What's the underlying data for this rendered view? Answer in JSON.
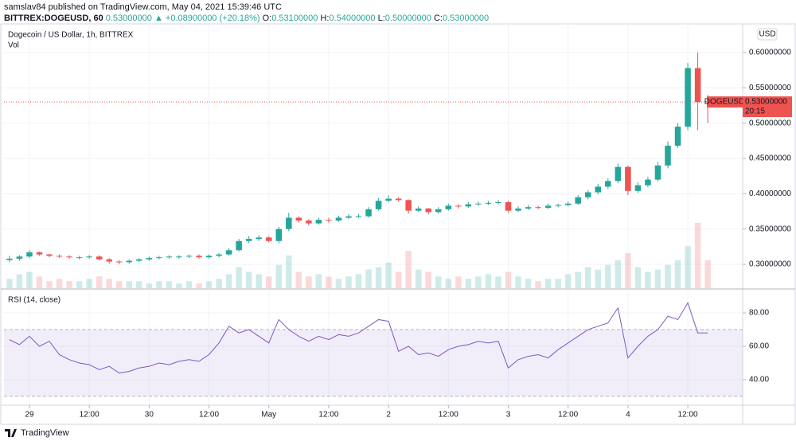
{
  "header": {
    "publisher": "samslav84 published on TradingView.com, May 04, 2021 15:39:46 UTC",
    "symbol": "BITTREX:DOGEUSD, 60",
    "price": "0.53000000",
    "arrow": "▲",
    "change": "+0.08900000 (+20.18%)",
    "o_label": "O:",
    "o": "0.53100000",
    "h_label": "H:",
    "h": "0.54000000",
    "l_label": "L:",
    "l": "0.50000000",
    "c_label": "C:",
    "c": "0.53000000"
  },
  "footer": {
    "brand": "TradingView"
  },
  "chart_data": [
    {
      "type": "candlestick",
      "title": "Dogecoin / US Dollar, 1h, BITTREX",
      "volume_label": "Vol",
      "currency": "USD",
      "up_color": "#26a69a",
      "down_color": "#ef5350",
      "grid": true,
      "xlim": [
        -5.1,
        143
      ],
      "xticks": [
        {
          "value": 0,
          "label": "29"
        },
        {
          "value": 12,
          "label": "12:00"
        },
        {
          "value": 24,
          "label": "30"
        },
        {
          "value": 36,
          "label": "12:00"
        },
        {
          "value": 48,
          "label": "May"
        },
        {
          "value": 60,
          "label": "12:00"
        },
        {
          "value": 72,
          "label": "2"
        },
        {
          "value": 84,
          "label": "12:00"
        },
        {
          "value": 96,
          "label": "3"
        },
        {
          "value": 108,
          "label": "12:00"
        },
        {
          "value": 120,
          "label": "4"
        },
        {
          "value": 132,
          "label": "12:00"
        }
      ],
      "ylim": [
        0.2662,
        0.6406
      ],
      "yticks": [
        {
          "value": 0.3,
          "label": "0.30000000"
        },
        {
          "value": 0.35,
          "label": "0.35000000"
        },
        {
          "value": 0.4,
          "label": "0.40000000"
        },
        {
          "value": 0.45,
          "label": "0.45000000"
        },
        {
          "value": 0.5,
          "label": "0.50000000"
        },
        {
          "value": 0.55,
          "label": "0.55000000"
        },
        {
          "value": 0.6,
          "label": "0.60000000"
        }
      ],
      "last_price": {
        "value": 0.53,
        "label": "0.53000000"
      },
      "last_price_tag": "DOGEUSD",
      "countdown": "20:15",
      "x": [
        -4,
        -2,
        0,
        2,
        4,
        6,
        8,
        10,
        12,
        14,
        16,
        18,
        20,
        22,
        24,
        26,
        28,
        30,
        32,
        34,
        36,
        38,
        40,
        42,
        44,
        46,
        48,
        50,
        52,
        54,
        56,
        58,
        60,
        62,
        64,
        66,
        68,
        70,
        72,
        74,
        76,
        78,
        80,
        82,
        84,
        86,
        88,
        90,
        92,
        94,
        96,
        98,
        100,
        102,
        104,
        106,
        108,
        110,
        112,
        114,
        116,
        118,
        120,
        122,
        124,
        126,
        128,
        130,
        132,
        134,
        136
      ],
      "open": [
        0.306,
        0.308,
        0.311,
        0.317,
        0.314,
        0.312,
        0.311,
        0.31,
        0.31,
        0.311,
        0.307,
        0.304,
        0.303,
        0.305,
        0.307,
        0.309,
        0.31,
        0.311,
        0.311,
        0.312,
        0.31,
        0.312,
        0.314,
        0.32,
        0.333,
        0.336,
        0.338,
        0.333,
        0.35,
        0.366,
        0.362,
        0.358,
        0.363,
        0.362,
        0.366,
        0.368,
        0.368,
        0.378,
        0.39,
        0.393,
        0.391,
        0.376,
        0.379,
        0.374,
        0.378,
        0.383,
        0.382,
        0.385,
        0.386,
        0.387,
        0.388,
        0.376,
        0.379,
        0.381,
        0.38,
        0.383,
        0.384,
        0.386,
        0.395,
        0.402,
        0.41,
        0.418,
        0.438,
        0.404,
        0.412,
        0.42,
        0.44,
        0.468,
        0.495,
        0.578,
        0.531
      ],
      "high": [
        0.312,
        0.313,
        0.32,
        0.318,
        0.315,
        0.314,
        0.313,
        0.312,
        0.313,
        0.313,
        0.309,
        0.306,
        0.307,
        0.309,
        0.311,
        0.312,
        0.313,
        0.313,
        0.314,
        0.314,
        0.314,
        0.316,
        0.323,
        0.336,
        0.34,
        0.341,
        0.34,
        0.353,
        0.373,
        0.368,
        0.364,
        0.366,
        0.366,
        0.369,
        0.371,
        0.371,
        0.381,
        0.394,
        0.398,
        0.395,
        0.392,
        0.382,
        0.38,
        0.381,
        0.386,
        0.385,
        0.388,
        0.389,
        0.39,
        0.391,
        0.39,
        0.382,
        0.384,
        0.383,
        0.386,
        0.386,
        0.389,
        0.398,
        0.405,
        0.414,
        0.422,
        0.443,
        0.44,
        0.416,
        0.424,
        0.445,
        0.474,
        0.5,
        0.585,
        0.6,
        0.54
      ],
      "low": [
        0.303,
        0.305,
        0.309,
        0.312,
        0.31,
        0.309,
        0.308,
        0.307,
        0.308,
        0.305,
        0.301,
        0.3,
        0.301,
        0.303,
        0.305,
        0.307,
        0.308,
        0.308,
        0.309,
        0.308,
        0.308,
        0.31,
        0.312,
        0.318,
        0.33,
        0.333,
        0.331,
        0.33,
        0.347,
        0.359,
        0.355,
        0.356,
        0.359,
        0.36,
        0.364,
        0.366,
        0.366,
        0.376,
        0.388,
        0.389,
        0.372,
        0.374,
        0.371,
        0.372,
        0.376,
        0.379,
        0.38,
        0.383,
        0.384,
        0.385,
        0.373,
        0.374,
        0.377,
        0.378,
        0.378,
        0.381,
        0.382,
        0.384,
        0.392,
        0.399,
        0.407,
        0.415,
        0.398,
        0.401,
        0.409,
        0.417,
        0.436,
        0.465,
        0.49,
        0.49,
        0.5
      ],
      "close": [
        0.308,
        0.311,
        0.317,
        0.314,
        0.312,
        0.311,
        0.31,
        0.31,
        0.311,
        0.307,
        0.304,
        0.303,
        0.305,
        0.307,
        0.309,
        0.31,
        0.311,
        0.311,
        0.312,
        0.31,
        0.312,
        0.314,
        0.32,
        0.333,
        0.336,
        0.338,
        0.333,
        0.35,
        0.366,
        0.362,
        0.358,
        0.363,
        0.362,
        0.366,
        0.368,
        0.368,
        0.378,
        0.39,
        0.393,
        0.391,
        0.376,
        0.379,
        0.374,
        0.378,
        0.383,
        0.382,
        0.385,
        0.386,
        0.387,
        0.388,
        0.376,
        0.379,
        0.381,
        0.38,
        0.383,
        0.384,
        0.386,
        0.395,
        0.402,
        0.41,
        0.418,
        0.438,
        0.404,
        0.412,
        0.42,
        0.44,
        0.468,
        0.495,
        0.578,
        0.53,
        0.53
      ],
      "volume": [
        4,
        6,
        7,
        5,
        3,
        4,
        3,
        3,
        4,
        5,
        4,
        3,
        3,
        3,
        2,
        3,
        3,
        2,
        3,
        2,
        3,
        4,
        6,
        9,
        7,
        6,
        5,
        10,
        14,
        7,
        5,
        6,
        5,
        4,
        5,
        6,
        8,
        9,
        11,
        7,
        16,
        8,
        7,
        5,
        4,
        5,
        4,
        5,
        6,
        5,
        7,
        5,
        4,
        3,
        4,
        4,
        6,
        7,
        9,
        8,
        10,
        12,
        15,
        9,
        7,
        8,
        10,
        12,
        18,
        28,
        12
      ]
    },
    {
      "type": "line",
      "title": "RSI (14, close)",
      "color": "#7e57c2",
      "band_color": "#7e57c2",
      "bands": [
        30,
        70
      ],
      "grid": true,
      "xlim": [
        -5.1,
        143
      ],
      "ylim": [
        25.2,
        92.9
      ],
      "yticks": [
        {
          "value": 40,
          "label": "40.00"
        },
        {
          "value": 60,
          "label": "60.00"
        },
        {
          "value": 80,
          "label": "80.00"
        }
      ],
      "x": [
        -4,
        -2,
        0,
        2,
        4,
        6,
        8,
        10,
        12,
        14,
        16,
        18,
        20,
        22,
        24,
        26,
        28,
        30,
        32,
        34,
        36,
        38,
        40,
        42,
        44,
        46,
        48,
        50,
        52,
        54,
        56,
        58,
        60,
        62,
        64,
        66,
        68,
        70,
        72,
        74,
        76,
        78,
        80,
        82,
        84,
        86,
        88,
        90,
        92,
        94,
        96,
        98,
        100,
        102,
        104,
        106,
        108,
        110,
        112,
        114,
        116,
        118,
        120,
        122,
        124,
        126,
        128,
        130,
        132,
        134,
        136
      ],
      "values": [
        64,
        61,
        66,
        60,
        63,
        55,
        52,
        50,
        49,
        46,
        48,
        44,
        45,
        47,
        48,
        50,
        49,
        51,
        52,
        51,
        55,
        62,
        72,
        68,
        70,
        66,
        62,
        76,
        70,
        66,
        63,
        66,
        64,
        67,
        66,
        68,
        72,
        76,
        75,
        57,
        60,
        55,
        56,
        54,
        58,
        60,
        61,
        63,
        62,
        63,
        47,
        52,
        54,
        55,
        53,
        58,
        62,
        66,
        70,
        72,
        74,
        83,
        53,
        60,
        66,
        70,
        78,
        76,
        86,
        68,
        68
      ]
    }
  ]
}
